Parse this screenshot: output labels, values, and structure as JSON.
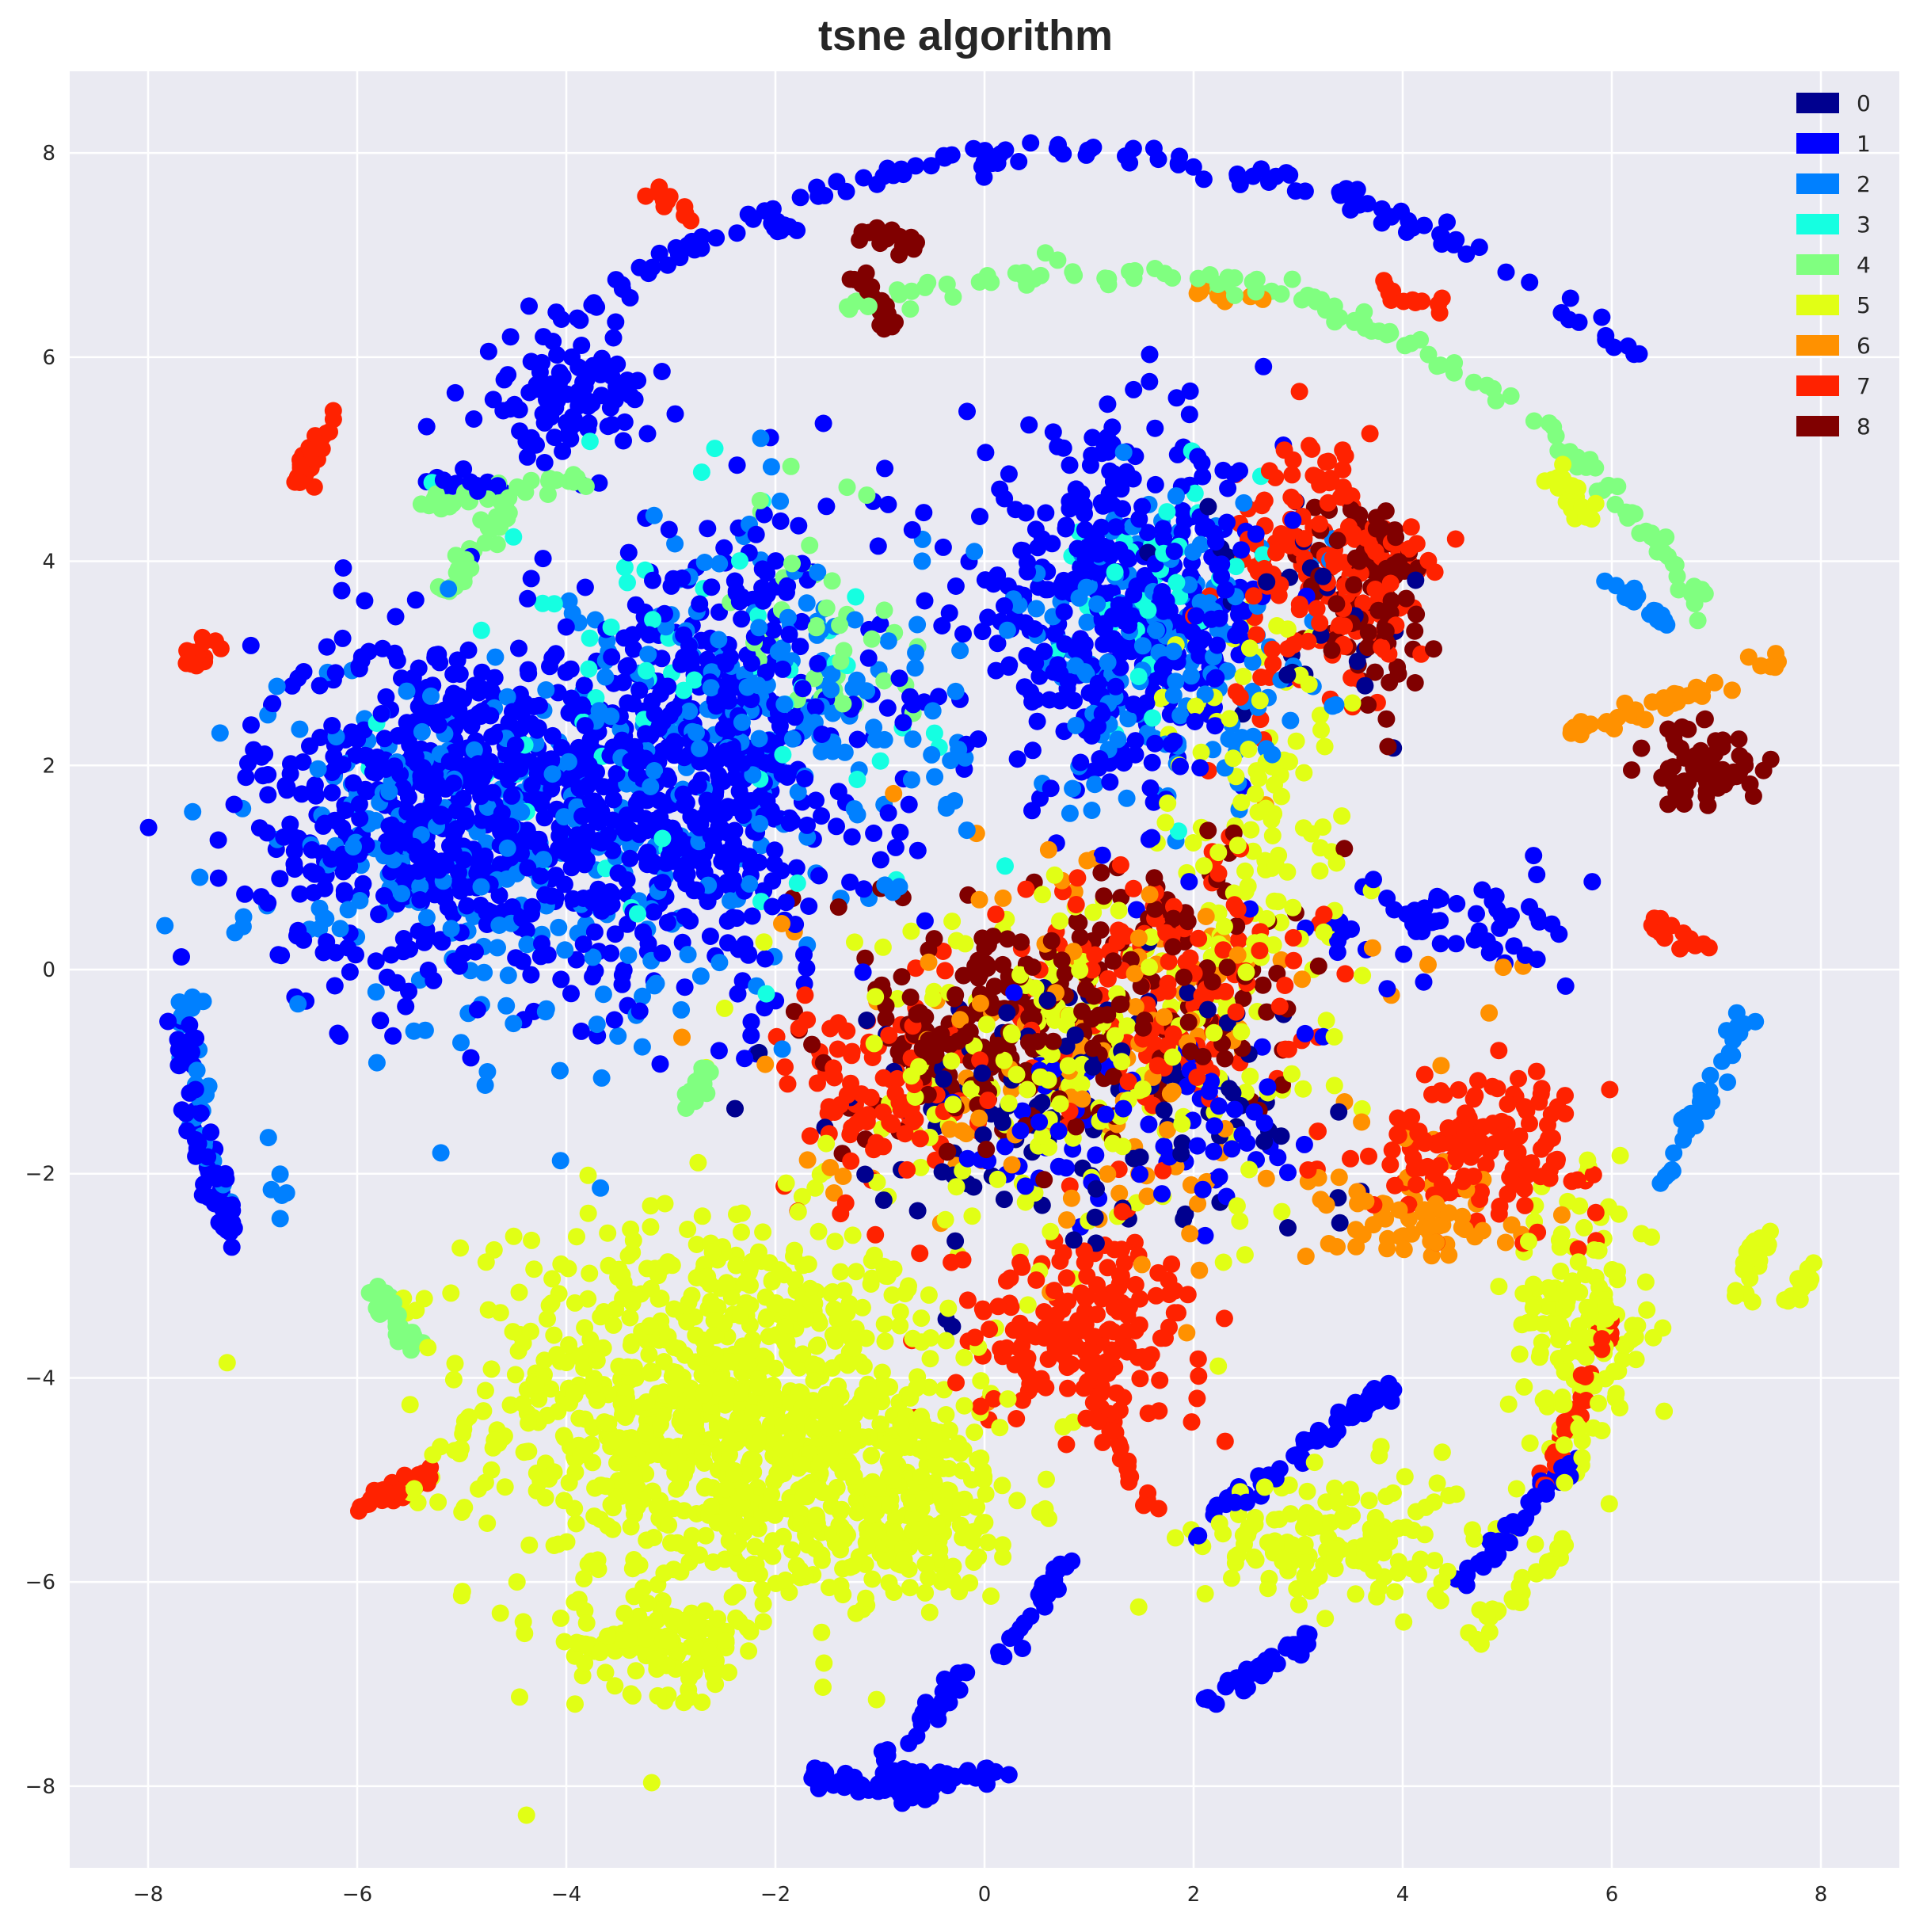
{
  "chart_data": {
    "type": "scatter",
    "title": "tsne algorithm",
    "xlabel": "",
    "ylabel": "",
    "xlim": [
      -8.75,
      8.75
    ],
    "ylim": [
      -8.8,
      8.8
    ],
    "xticks": [
      -8,
      -6,
      -4,
      -2,
      0,
      2,
      4,
      6,
      8
    ],
    "yticks": [
      -8,
      -6,
      -4,
      -2,
      0,
      2,
      4,
      6,
      8
    ],
    "grid": true,
    "legend_position": "top-right",
    "legend": [
      "0",
      "1",
      "2",
      "3",
      "4",
      "5",
      "6",
      "7",
      "8"
    ],
    "colors": [
      "#00008f",
      "#0000ff",
      "#0080ff",
      "#15ffe1",
      "#80ff80",
      "#e1ff15",
      "#ff9100",
      "#ff2200",
      "#800000"
    ],
    "background": "#eaeaf2",
    "clusters": [
      {
        "label": 5,
        "cx": -2.6,
        "cy": -4.3,
        "rx": 2.3,
        "ry": 1.9,
        "n": 900
      },
      {
        "label": 5,
        "cx": -0.8,
        "cy": -5.2,
        "rx": 1.2,
        "ry": 1.0,
        "n": 260
      },
      {
        "label": 5,
        "cx": -3.0,
        "cy": -6.6,
        "rx": 0.9,
        "ry": 0.5,
        "n": 120
      },
      {
        "label": 5,
        "cx": 5.7,
        "cy": -3.5,
        "rx": 0.7,
        "ry": 1.3,
        "n": 160
      },
      {
        "label": 5,
        "cx": 3.4,
        "cy": -5.6,
        "rx": 1.3,
        "ry": 0.7,
        "n": 150
      },
      {
        "label": 1,
        "cx": -5.0,
        "cy": 1.6,
        "rx": 2.0,
        "ry": 1.7,
        "n": 650
      },
      {
        "label": 1,
        "cx": -2.6,
        "cy": 2.0,
        "rx": 1.6,
        "ry": 2.3,
        "n": 500
      },
      {
        "label": 1,
        "cx": 1.3,
        "cy": 3.5,
        "rx": 1.5,
        "ry": 1.7,
        "n": 420
      },
      {
        "label": 1,
        "cx": -4.0,
        "cy": 5.6,
        "rx": 0.8,
        "ry": 0.6,
        "n": 100
      },
      {
        "label": 2,
        "cx": -4.8,
        "cy": 1.2,
        "rx": 2.2,
        "ry": 1.9,
        "n": 260
      },
      {
        "label": 2,
        "cx": -2.0,
        "cy": 2.5,
        "rx": 1.8,
        "ry": 2.0,
        "n": 180
      },
      {
        "label": 2,
        "cx": 1.8,
        "cy": 3.0,
        "rx": 1.5,
        "ry": 1.5,
        "n": 160
      },
      {
        "label": 3,
        "cx": -3.0,
        "cy": 2.5,
        "rx": 2.5,
        "ry": 2.2,
        "n": 70
      },
      {
        "label": 3,
        "cx": 1.5,
        "cy": 3.5,
        "rx": 1.2,
        "ry": 1.5,
        "n": 40
      },
      {
        "label": 7,
        "cx": 3.3,
        "cy": 3.9,
        "rx": 1.0,
        "ry": 1.3,
        "n": 170
      },
      {
        "label": 7,
        "cx": 0.9,
        "cy": -3.5,
        "rx": 1.2,
        "ry": 0.9,
        "n": 180
      },
      {
        "label": 7,
        "cx": 4.8,
        "cy": -1.7,
        "rx": 1.1,
        "ry": 0.7,
        "n": 150
      },
      {
        "label": 7,
        "cx": 1.6,
        "cy": -0.2,
        "rx": 1.5,
        "ry": 1.3,
        "n": 150
      },
      {
        "label": 7,
        "cx": -1.0,
        "cy": -1.2,
        "rx": 0.9,
        "ry": 1.0,
        "n": 100
      },
      {
        "label": 8,
        "cx": 0.1,
        "cy": -0.6,
        "rx": 1.2,
        "ry": 1.2,
        "n": 200
      },
      {
        "label": 8,
        "cx": 3.7,
        "cy": 3.6,
        "rx": 0.6,
        "ry": 1.2,
        "n": 90
      },
      {
        "label": 8,
        "cx": 6.9,
        "cy": 2.0,
        "rx": 0.5,
        "ry": 0.4,
        "n": 70
      },
      {
        "label": 8,
        "cx": 1.8,
        "cy": -0.1,
        "rx": 1.2,
        "ry": 1.4,
        "n": 90
      },
      {
        "label": 6,
        "cx": 1.0,
        "cy": -0.7,
        "rx": 2.8,
        "ry": 2.0,
        "n": 130
      },
      {
        "label": 6,
        "cx": 4.2,
        "cy": -2.4,
        "rx": 1.0,
        "ry": 0.5,
        "n": 60
      },
      {
        "label": 0,
        "cx": 0.6,
        "cy": -1.3,
        "rx": 2.6,
        "ry": 1.4,
        "n": 120
      },
      {
        "label": 0,
        "cx": 3.0,
        "cy": 3.5,
        "rx": 1.2,
        "ry": 1.5,
        "n": 30
      },
      {
        "label": 5,
        "cx": 1.0,
        "cy": -0.8,
        "rx": 2.5,
        "ry": 1.8,
        "n": 200
      },
      {
        "label": 5,
        "cx": 2.6,
        "cy": 1.5,
        "rx": 0.9,
        "ry": 2.0,
        "n": 100
      },
      {
        "label": 1,
        "cx": 4.4,
        "cy": 0.4,
        "rx": 1.2,
        "ry": 0.6,
        "n": 60
      },
      {
        "label": 1,
        "cx": 1.6,
        "cy": -1.5,
        "rx": 1.8,
        "ry": 1.0,
        "n": 80
      },
      {
        "label": 4,
        "cx": -1.4,
        "cy": 3.4,
        "rx": 1.0,
        "ry": 1.6,
        "n": 40
      }
    ],
    "arcs": [
      {
        "label": 1,
        "cx": 0.9,
        "cy": 0.0,
        "r": 8.0,
        "a0": 48,
        "a1": 128,
        "n": 130
      },
      {
        "label": 4,
        "cx": 1.0,
        "cy": 0.0,
        "r": 6.85,
        "a0": 30,
        "a1": 110,
        "n": 130
      },
      {
        "label": 1,
        "cx": -0.7,
        "cy": 0.0,
        "r": 7.0,
        "a0": 184,
        "a1": 203,
        "n": 60
      },
      {
        "label": 2,
        "cx": -0.7,
        "cy": 0.0,
        "r": 6.95,
        "a0": 182,
        "a1": 200,
        "n": 25
      },
      {
        "label": 4,
        "cx": 0.0,
        "cy": 0.0,
        "r": 6.6,
        "a0": 208,
        "a1": 215,
        "n": 40
      },
      {
        "label": 1,
        "cx": 0.0,
        "cy": 0.0,
        "r": 8.05,
        "a0": 258,
        "a1": 267,
        "n": 60
      },
      {
        "label": 5,
        "cx": 0.0,
        "cy": 0.0,
        "r": 7.9,
        "a0": 336,
        "a1": 342,
        "n": 25
      },
      {
        "label": 5,
        "cx": 0.0,
        "cy": 0.0,
        "r": 7.3,
        "a0": 37,
        "a1": 42,
        "n": 25
      },
      {
        "label": 4,
        "cx": 0.0,
        "cy": 0.0,
        "r": 6.4,
        "a0": 135,
        "a1": 145,
        "n": 30
      }
    ],
    "segments": [
      {
        "label": 7,
        "x0": -6.55,
        "y0": 4.75,
        "x1": -6.25,
        "y1": 5.45,
        "n": 30
      },
      {
        "label": 7,
        "x0": -7.7,
        "y0": 3.05,
        "x1": -7.3,
        "y1": 3.15,
        "n": 15
      },
      {
        "label": 7,
        "x0": -5.95,
        "y0": -5.25,
        "x1": -5.35,
        "y1": -4.95,
        "n": 30
      },
      {
        "label": 7,
        "x0": -3.15,
        "y0": 7.65,
        "x1": -2.85,
        "y1": 7.4,
        "n": 12
      },
      {
        "label": 7,
        "x0": 6.4,
        "y0": 0.45,
        "x1": 6.85,
        "y1": 0.25,
        "n": 15
      },
      {
        "label": 2,
        "x0": 5.95,
        "y0": 3.8,
        "x1": 6.55,
        "y1": 3.35,
        "n": 20
      },
      {
        "label": 2,
        "x0": 6.5,
        "y0": -2.1,
        "x1": 7.3,
        "y1": -0.4,
        "n": 35
      },
      {
        "label": 6,
        "x0": 5.6,
        "y0": 2.3,
        "x1": 7.6,
        "y1": 3.0,
        "n": 45
      },
      {
        "label": 1,
        "x0": 4.6,
        "y0": -6.0,
        "x1": 5.7,
        "y1": -4.7,
        "n": 40
      },
      {
        "label": 1,
        "x0": 2.1,
        "y0": -7.2,
        "x1": 3.2,
        "y1": -6.5,
        "n": 35
      },
      {
        "label": 1,
        "x0": 2.0,
        "y0": -5.5,
        "x1": 4.0,
        "y1": -4.0,
        "n": 55
      },
      {
        "label": 1,
        "x0": 0.1,
        "y0": -6.8,
        "x1": 0.8,
        "y1": -5.8,
        "n": 30
      },
      {
        "label": 1,
        "x0": -1.0,
        "y0": -7.9,
        "x1": 0.2,
        "y1": -7.9,
        "n": 40
      },
      {
        "label": 1,
        "x0": -0.9,
        "y0": -7.7,
        "x1": -0.2,
        "y1": -6.9,
        "n": 25
      },
      {
        "label": 7,
        "x0": 5.3,
        "y0": -5.2,
        "x1": 6.0,
        "y1": -3.4,
        "n": 35
      },
      {
        "label": 7,
        "x0": 0.8,
        "y0": -3.5,
        "x1": 1.6,
        "y1": -5.3,
        "n": 30
      },
      {
        "label": 5,
        "x0": 7.7,
        "y0": -3.3,
        "x1": 7.95,
        "y1": -2.8,
        "n": 15
      },
      {
        "label": 5,
        "x0": 4.6,
        "y0": -6.6,
        "x1": 5.6,
        "y1": -5.6,
        "n": 30
      },
      {
        "label": 4,
        "x0": -5.35,
        "y0": 4.55,
        "x1": -3.8,
        "y1": 4.8,
        "n": 30
      },
      {
        "label": 1,
        "x0": -5.3,
        "y0": 4.8,
        "x1": -4.6,
        "y1": 4.75,
        "n": 15
      },
      {
        "label": 4,
        "x0": -2.85,
        "y0": -1.3,
        "x1": -2.65,
        "y1": -1.0,
        "n": 15
      },
      {
        "label": 8,
        "x0": -1.25,
        "y0": 6.9,
        "x1": -0.9,
        "y1": 6.3,
        "n": 20
      },
      {
        "label": 8,
        "x0": -1.2,
        "y0": 7.2,
        "x1": -0.7,
        "y1": 7.1,
        "n": 15
      },
      {
        "label": 1,
        "x0": -2.0,
        "y0": 7.3,
        "x1": -1.8,
        "y1": 7.3,
        "n": 8
      },
      {
        "label": 7,
        "x0": 3.8,
        "y0": 6.7,
        "x1": 4.4,
        "y1": 6.5,
        "n": 12
      },
      {
        "label": 6,
        "x0": 2.0,
        "y0": 6.7,
        "x1": 2.6,
        "y1": 6.5,
        "n": 10
      },
      {
        "label": 2,
        "x0": -6.9,
        "y0": -1.4,
        "x1": -6.7,
        "y1": -2.5,
        "n": 6
      }
    ]
  }
}
